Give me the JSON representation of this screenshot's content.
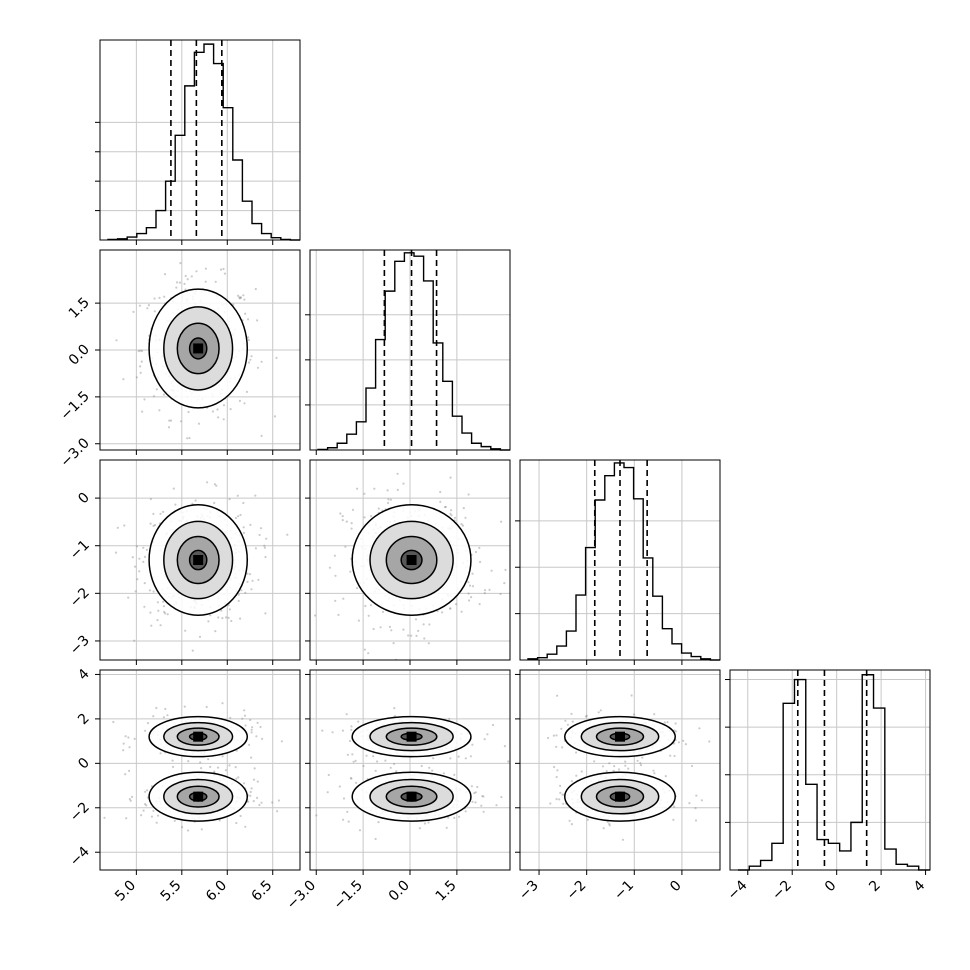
{
  "chart_data": {
    "type": "corner",
    "parameters": 4,
    "colors": {
      "frame": "#000000",
      "grid": "#c8c8c8",
      "hist": "#000000",
      "scatter": "#8c8c8c",
      "density": "#000000"
    },
    "grid": true,
    "ranges": [
      [
        4.6,
        6.8
      ],
      [
        -3.2,
        3.2
      ],
      [
        -3.4,
        0.8
      ],
      [
        -4.8,
        4.2
      ]
    ],
    "ticks": [
      {
        "values": [
          5.0,
          5.5,
          6.0,
          6.5
        ],
        "labels": [
          "5.0",
          "5.5",
          "6.0",
          "6.5"
        ]
      },
      {
        "values": [
          -3.0,
          -1.5,
          0.0,
          1.5
        ],
        "labels": [
          "−3.0",
          "−1.5",
          "0.0",
          "1.5"
        ]
      },
      {
        "values": [
          -3,
          -2,
          -1,
          0
        ],
        "labels": [
          "−3",
          "−2",
          "−1",
          "0"
        ]
      },
      {
        "values": [
          -4,
          -2,
          0,
          2,
          4
        ],
        "labels": [
          "−4",
          "−2",
          "0",
          "2",
          "4"
        ]
      }
    ],
    "quantiles": [
      [
        5.38,
        5.66,
        5.94
      ],
      [
        -0.82,
        0.05,
        0.85
      ],
      [
        -1.83,
        -1.3,
        -0.73
      ],
      [
        -1.75,
        -0.55,
        1.35
      ]
    ],
    "histograms": [
      {
        "counts": [
          1,
          2,
          5,
          11,
          21,
          50,
          100,
          178,
          262,
          319,
          333,
          300,
          225,
          136,
          66,
          28,
          11,
          4,
          1,
          0
        ]
      },
      {
        "counts": [
          1,
          4,
          12,
          28,
          50,
          110,
          196,
          282,
          335,
          350,
          344,
          300,
          190,
          122,
          60,
          30,
          12,
          6,
          2,
          0
        ]
      },
      {
        "counts": [
          2,
          4,
          10,
          24,
          50,
          112,
          194,
          276,
          318,
          340,
          332,
          278,
          176,
          110,
          54,
          28,
          12,
          6,
          2,
          0
        ]
      },
      {
        "counts": [
          0,
          4,
          10,
          28,
          175,
          200,
          90,
          32,
          28,
          20,
          50,
          205,
          170,
          22,
          6,
          4,
          0
        ]
      }
    ],
    "histogram_axis_ticks": [
      [
        50,
        100,
        150,
        200
      ],
      [
        80,
        160,
        240
      ],
      [
        80,
        160,
        240
      ],
      [
        50,
        100,
        150,
        200
      ]
    ],
    "histogram_ymax": [
      [
        340
      ],
      [
        355
      ],
      [
        345
      ],
      [
        210
      ]
    ],
    "joint": [
      {
        "row": 1,
        "col": 0,
        "modes": [
          {
            "mx": 5.68,
            "my": 0.05,
            "sx": 0.27,
            "sy": 0.95,
            "w": 1
          }
        ]
      },
      {
        "row": 2,
        "col": 0,
        "modes": [
          {
            "mx": 5.68,
            "my": -1.3,
            "sx": 0.27,
            "sy": 0.58,
            "w": 1
          }
        ]
      },
      {
        "row": 2,
        "col": 1,
        "modes": [
          {
            "mx": 0.05,
            "my": -1.3,
            "sx": 0.95,
            "sy": 0.58,
            "w": 1
          }
        ]
      },
      {
        "row": 3,
        "col": 0,
        "modes": [
          {
            "mx": 5.68,
            "my": 1.2,
            "sx": 0.27,
            "sy": 0.45,
            "w": 1
          },
          {
            "mx": 5.68,
            "my": -1.5,
            "sx": 0.27,
            "sy": 0.55,
            "w": 1
          }
        ]
      },
      {
        "row": 3,
        "col": 1,
        "modes": [
          {
            "mx": 0.05,
            "my": 1.2,
            "sx": 0.95,
            "sy": 0.45,
            "w": 1
          },
          {
            "mx": 0.05,
            "my": -1.5,
            "sx": 0.95,
            "sy": 0.55,
            "w": 1
          }
        ]
      },
      {
        "row": 3,
        "col": 2,
        "modes": [
          {
            "mx": -1.3,
            "my": 1.2,
            "sx": 0.58,
            "sy": 0.45,
            "w": 1
          },
          {
            "mx": -1.3,
            "my": -1.5,
            "sx": 0.58,
            "sy": 0.55,
            "w": 1
          }
        ]
      }
    ]
  }
}
